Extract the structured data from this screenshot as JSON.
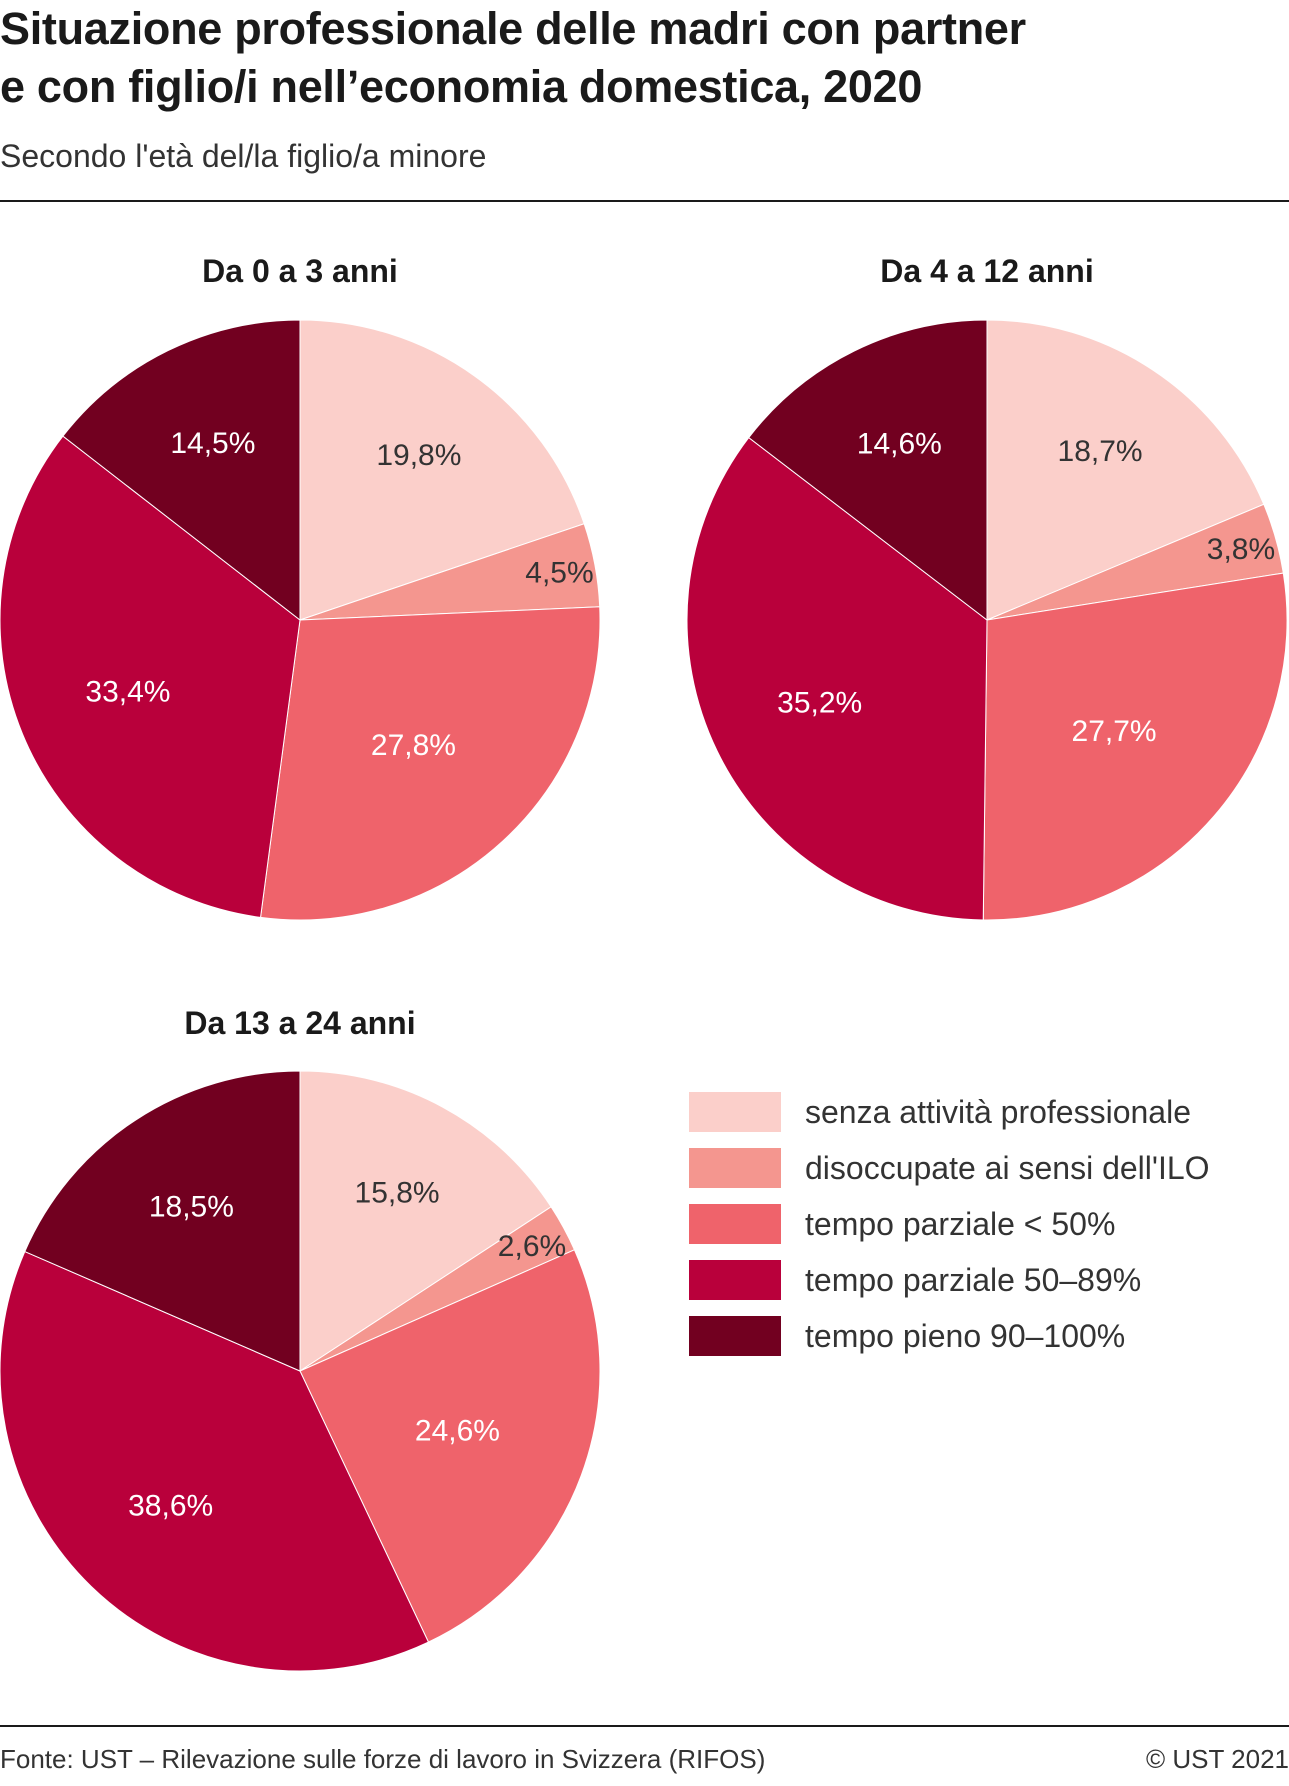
{
  "title_lines": [
    "Situazione professionale delle madri con partner",
    "e con figlio/i nell’economia domestica, 2020"
  ],
  "subtitle": "Secondo l'età del/la figlio/a minore",
  "source": "Fonte: UST – Rilevazione sulle forze di lavoro in Svizzera (RIFOS)",
  "copyright": "© UST 2021",
  "chart_data": [
    {
      "type": "pie",
      "title": "Da 0 a 3 anni",
      "categories": [
        "senza attività professionale",
        "disoccupate ai sensi dell'ILO",
        "tempo parziale < 50%",
        "tempo parziale 50–89%",
        "tempo pieno 90–100%"
      ],
      "values": [
        19.8,
        4.5,
        27.8,
        33.4,
        14.5
      ],
      "labels": [
        "19,8%",
        "4,5%",
        "27,8%",
        "33,4%",
        "14,5%"
      ]
    },
    {
      "type": "pie",
      "title": "Da 4 a 12 anni",
      "categories": [
        "senza attività professionale",
        "disoccupate ai sensi dell'ILO",
        "tempo parziale < 50%",
        "tempo parziale 50–89%",
        "tempo pieno 90–100%"
      ],
      "values": [
        18.7,
        3.8,
        27.7,
        35.2,
        14.6
      ],
      "labels": [
        "18,7%",
        "3,8%",
        "27,7%",
        "35,2%",
        "14,6%"
      ]
    },
    {
      "type": "pie",
      "title": "Da 13 a 24 anni",
      "categories": [
        "senza attività professionale",
        "disoccupate ai sensi dell'ILO",
        "tempo parziale < 50%",
        "tempo parziale 50–89%",
        "tempo pieno 90–100%"
      ],
      "values": [
        15.8,
        2.6,
        24.6,
        38.6,
        18.5
      ],
      "labels": [
        "15,8%",
        "2,6%",
        "24,6%",
        "38,6%",
        "18,5%"
      ]
    }
  ],
  "legend": [
    {
      "label": "senza attività professionale",
      "color": "#fbcfca"
    },
    {
      "label": "disoccupate ai sensi dell'ILO",
      "color": "#f4968f"
    },
    {
      "label": "tempo parziale < 50%",
      "color": "#ef636b"
    },
    {
      "label": "tempo parziale 50–89%",
      "color": "#b9003b"
    },
    {
      "label": "tempo pieno 90–100%",
      "color": "#720020"
    }
  ],
  "label_colors": [
    "#333333",
    "#333333",
    "#ffffff",
    "#ffffff",
    "#ffffff"
  ]
}
